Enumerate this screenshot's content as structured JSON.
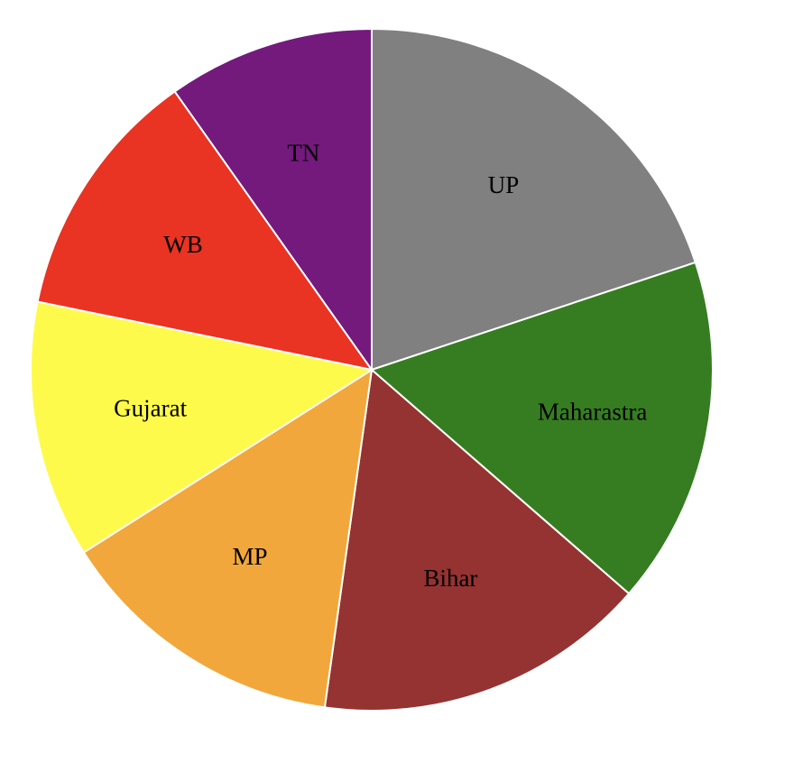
{
  "chart_data": {
    "type": "pie",
    "title": "",
    "start_angle": "12 o'clock",
    "direction": "clockwise",
    "slices": [
      {
        "label": "UP",
        "value": 19.9,
        "color": "#808080"
      },
      {
        "label": "Maharastra",
        "value": 16.5,
        "color": "#367d22"
      },
      {
        "label": "Bihar",
        "value": 15.8,
        "color": "#943331"
      },
      {
        "label": "MP",
        "value": 13.8,
        "color": "#f2a73c"
      },
      {
        "label": "Gujarat",
        "value": 12.2,
        "color": "#fefa4b"
      },
      {
        "label": "WB",
        "value": 12.0,
        "color": "#e93323"
      },
      {
        "label": "TN",
        "value": 9.8,
        "color": "#731a7c"
      }
    ]
  }
}
